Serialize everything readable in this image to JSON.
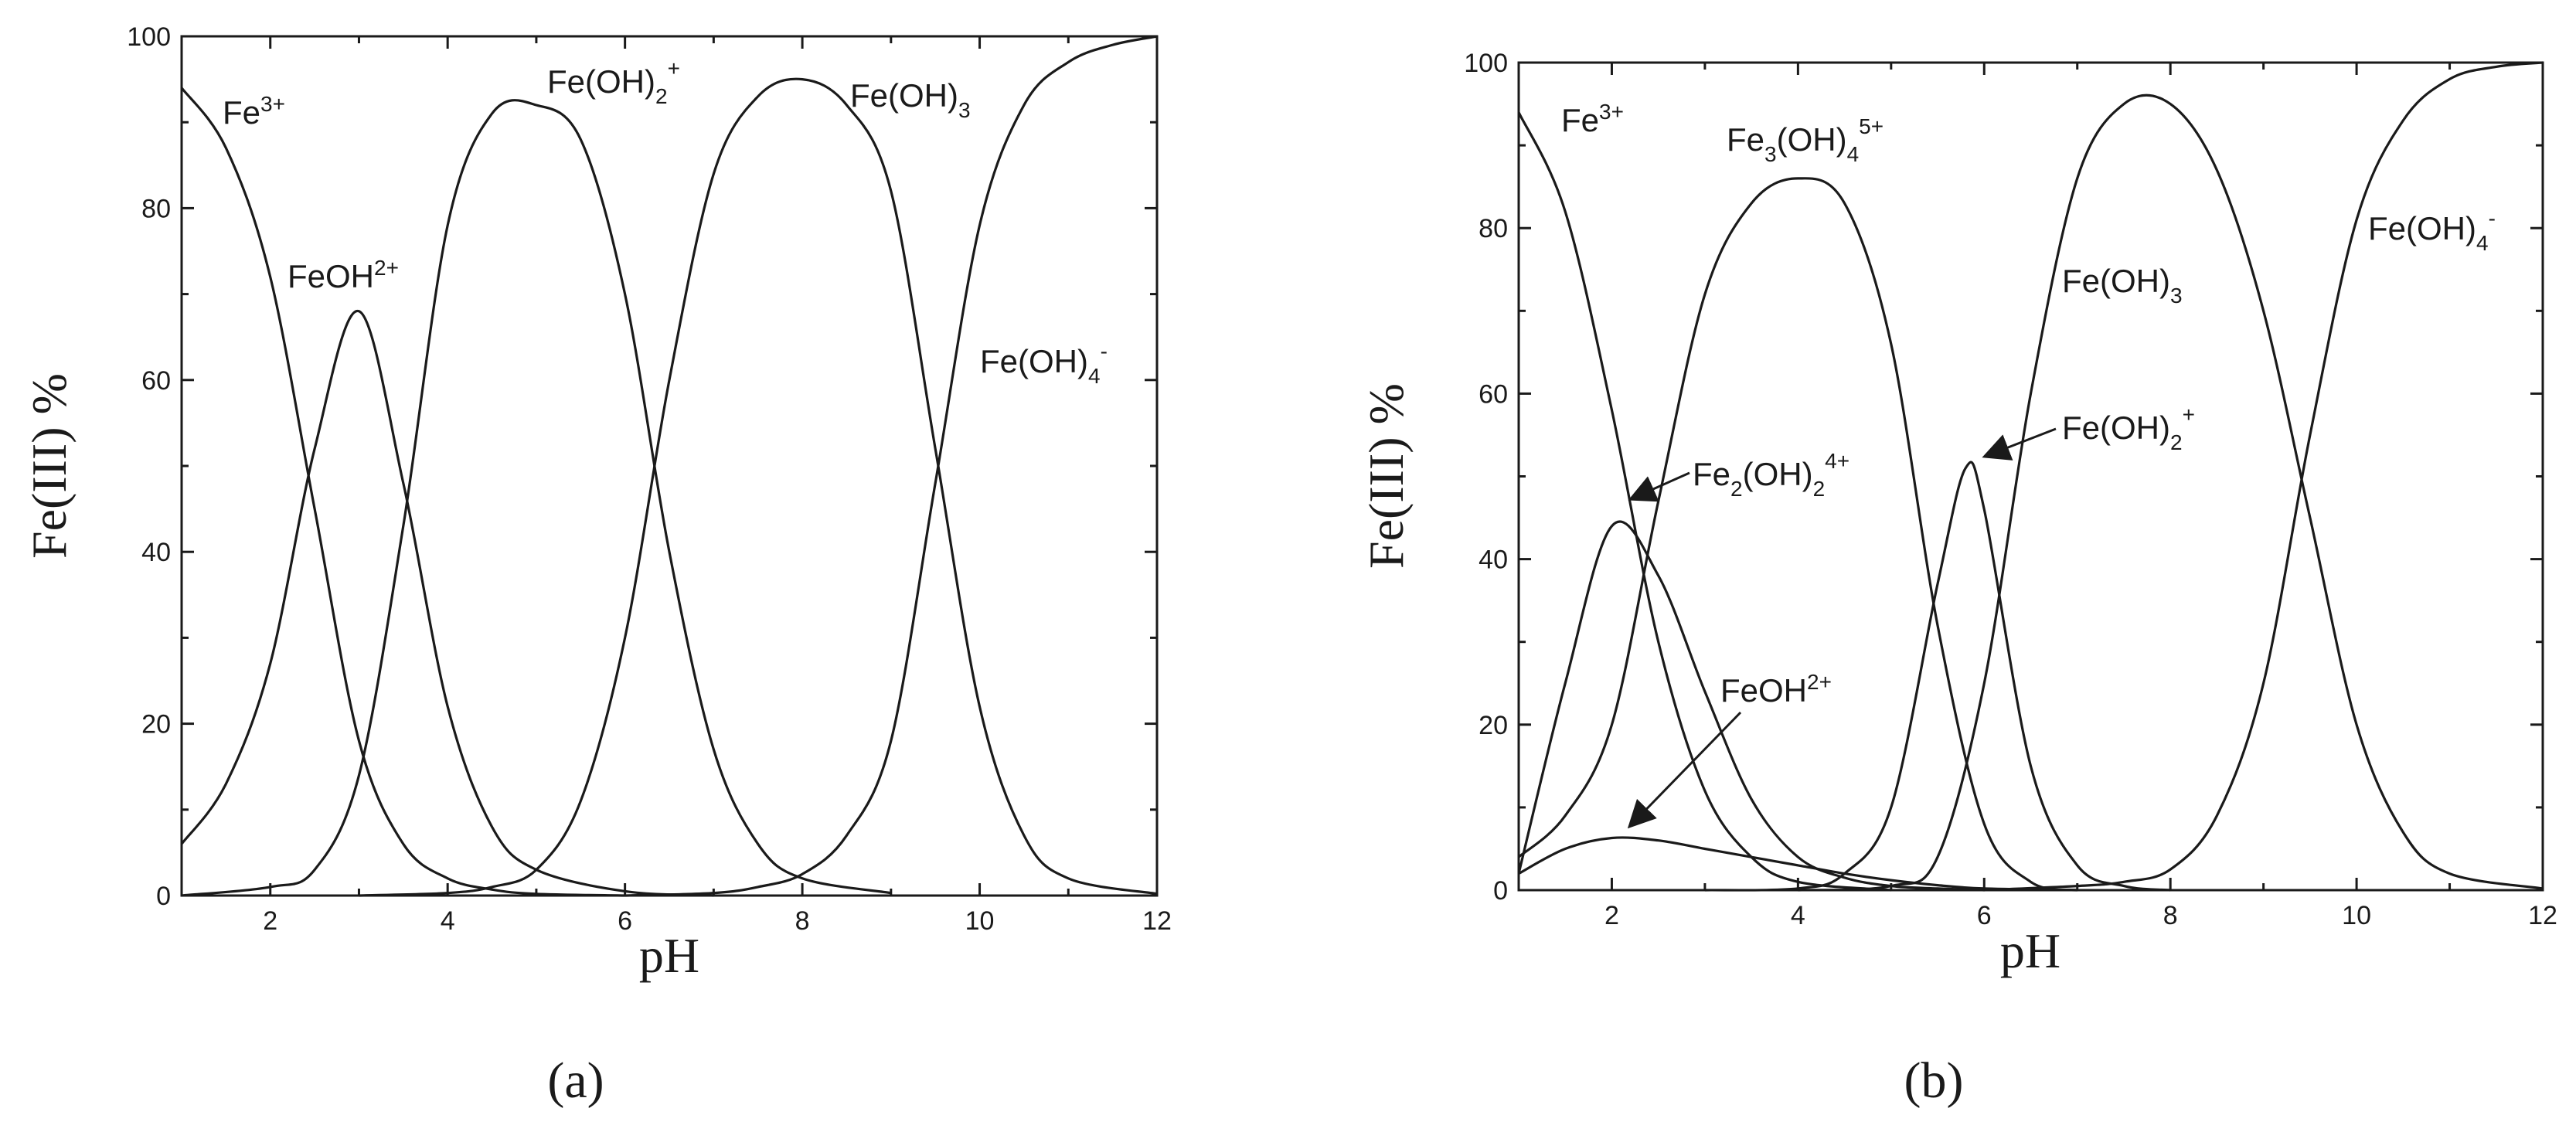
{
  "chart_data": [
    {
      "type": "line",
      "panel_label": "(a)",
      "xlabel": "pH",
      "ylabel": "Fe(III) %",
      "xlim": [
        1,
        12
      ],
      "ylim": [
        0,
        100
      ],
      "xticks": [
        2,
        4,
        6,
        8,
        10,
        12
      ],
      "yticks": [
        0,
        20,
        40,
        60,
        80,
        100
      ],
      "grid": false,
      "series": [
        {
          "name": "Fe3+",
          "x": [
            1,
            1.5,
            2,
            2.5,
            3,
            3.5,
            4,
            4.5,
            5,
            6
          ],
          "y": [
            94,
            87,
            72,
            45,
            18,
            6,
            2,
            0.7,
            0.2,
            0
          ]
        },
        {
          "name": "FeOH2+",
          "x": [
            1,
            1.5,
            2,
            2.5,
            3,
            3.5,
            4,
            4.5,
            5,
            6,
            7
          ],
          "y": [
            6,
            13,
            27,
            52,
            68,
            48,
            22,
            8,
            3,
            0.5,
            0
          ]
        },
        {
          "name": "Fe(OH)2+",
          "x": [
            1,
            2,
            2.5,
            3,
            3.5,
            4,
            4.5,
            5,
            5.5,
            6,
            6.5,
            7,
            7.5,
            8,
            9
          ],
          "y": [
            0,
            1,
            3,
            14,
            43,
            78,
            91,
            92,
            88,
            70,
            40,
            17,
            6,
            2,
            0.3
          ]
        },
        {
          "name": "Fe(OH)3",
          "x": [
            3,
            4,
            4.5,
            5,
            5.5,
            6,
            6.5,
            7,
            7.5,
            8,
            8.5,
            9,
            9.5,
            10,
            10.5,
            11,
            12
          ],
          "y": [
            0,
            0.3,
            1,
            3,
            11,
            30,
            60,
            84,
            93,
            95,
            92,
            82,
            52,
            22,
            7,
            2,
            0.2
          ]
        },
        {
          "name": "Fe(OH)4-",
          "x": [
            6,
            7,
            7.5,
            8,
            8.5,
            9,
            9.5,
            10,
            10.5,
            11,
            11.5,
            12
          ],
          "y": [
            0,
            0.3,
            1,
            2.5,
            7,
            18,
            48,
            78,
            92,
            97,
            99,
            100
          ]
        }
      ],
      "labels": [
        {
          "text": "Fe",
          "sup": "3+",
          "sub": ""
        },
        {
          "text": "FeOH",
          "sup": "2+",
          "sub": ""
        },
        {
          "text": "Fe(OH)",
          "sub": "2",
          "sup": "+"
        },
        {
          "text": "Fe(OH)",
          "sub": "3",
          "sup": ""
        },
        {
          "text": "Fe(OH)",
          "sub": "4",
          "sup": "-"
        }
      ]
    },
    {
      "type": "line",
      "panel_label": "(b)",
      "xlabel": "pH",
      "ylabel": "Fe(III) %",
      "xlim": [
        1,
        12
      ],
      "ylim": [
        0,
        100
      ],
      "xticks": [
        2,
        4,
        6,
        8,
        10,
        12
      ],
      "yticks": [
        0,
        20,
        40,
        60,
        80,
        100
      ],
      "grid": false,
      "series": [
        {
          "name": "Fe3+",
          "x": [
            1,
            1.5,
            2,
            2.5,
            3,
            3.5,
            4,
            5
          ],
          "y": [
            94,
            82,
            58,
            30,
            12,
            4,
            1,
            0
          ]
        },
        {
          "name": "Fe2(OH)24+",
          "x": [
            1,
            1.5,
            2,
            2.5,
            3,
            3.5,
            4,
            4.5,
            5,
            5.5,
            6
          ],
          "y": [
            2,
            25,
            44,
            38,
            24,
            11,
            4,
            1.5,
            0.5,
            0.2,
            0
          ]
        },
        {
          "name": "FeOH2+",
          "x": [
            1,
            1.5,
            2,
            2.5,
            3,
            3.5,
            4,
            4.5,
            5,
            5.5,
            6,
            7
          ],
          "y": [
            2,
            5,
            6.3,
            6,
            5,
            4,
            3,
            2,
            1.2,
            0.6,
            0.2,
            0
          ]
        },
        {
          "name": "Fe3(OH)45+",
          "x": [
            1,
            1.5,
            2,
            2.5,
            3,
            3.5,
            4,
            4.5,
            5,
            5.5,
            6,
            6.5,
            7
          ],
          "y": [
            4,
            9,
            20,
            47,
            72,
            83,
            86,
            83,
            66,
            32,
            8,
            1,
            0
          ]
        },
        {
          "name": "Fe(OH)2+",
          "x": [
            3,
            4,
            4.5,
            5,
            5.5,
            5.8,
            6,
            6.5,
            7,
            7.5,
            8
          ],
          "y": [
            0,
            0.2,
            2,
            10,
            37,
            51,
            46,
            15,
            3,
            0.5,
            0
          ]
        },
        {
          "name": "Fe(OH)3",
          "x": [
            4,
            5,
            5.5,
            6,
            6.5,
            7,
            7.5,
            8,
            8.5,
            9,
            9.5,
            10,
            10.5,
            11,
            12
          ],
          "y": [
            0,
            0.5,
            4,
            25,
            60,
            86,
            95,
            95,
            87,
            70,
            45,
            20,
            7,
            2,
            0.2
          ]
        },
        {
          "name": "Fe(OH)4-",
          "x": [
            6,
            7,
            7.5,
            8,
            8.5,
            9,
            9.5,
            10,
            10.5,
            11,
            11.5,
            12
          ],
          "y": [
            0,
            0.5,
            1,
            2.5,
            9,
            25,
            55,
            81,
            93,
            98,
            99.5,
            100
          ]
        }
      ],
      "labels": [
        {
          "text": "Fe",
          "sup": "3+",
          "sub": ""
        },
        {
          "text": "Fe",
          "sub": "3",
          "text2": "(OH)",
          "sub2": "4",
          "sup": "5+"
        },
        {
          "text": "Fe(OH)",
          "sub": "3",
          "sup": ""
        },
        {
          "text": "Fe(OH)",
          "sub": "4",
          "sup": "-"
        },
        {
          "text": "Fe",
          "sub": "2",
          "text2": "(OH)",
          "sub2": "2",
          "sup": "4+"
        },
        {
          "text": "Fe(OH)",
          "sub": "2",
          "sup": "+"
        },
        {
          "text": "FeOH",
          "sup": "2+",
          "sub": ""
        }
      ]
    }
  ]
}
